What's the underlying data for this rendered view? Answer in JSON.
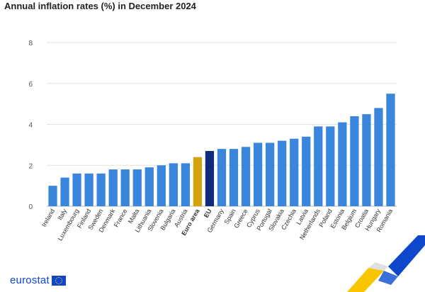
{
  "page_title": "Annual inflation rates (%) in December 2024",
  "brand": {
    "name": "eurostat",
    "logo_icon": "eu-flag-icon"
  },
  "colors": {
    "country": "#3b86dd",
    "euro_area": "#d4a20d",
    "eu": "#0e2a78",
    "grid": "#e4e4e4",
    "brand": "#0e47cb"
  },
  "chart_data": {
    "type": "bar",
    "title": "Annual inflation rates (%) in December 2024",
    "xlabel": "",
    "ylabel": "",
    "ylim": [
      0,
      8
    ],
    "yticks": [
      0,
      2,
      4,
      6,
      8
    ],
    "grid": true,
    "categories": [
      "Ireland",
      "Italy",
      "Luxembourg",
      "Finland",
      "Sweden",
      "Denmark",
      "France",
      "Malta",
      "Lithuania",
      "Slovenia",
      "Bulgaria",
      "Austria",
      "Euro area",
      "EU",
      "Germany",
      "Spain",
      "Greece",
      "Cyprus",
      "Portugal",
      "Slovakia",
      "Czechia",
      "Latvia",
      "Netherlands",
      "Poland",
      "Estonia",
      "Belgium",
      "Croatia",
      "Hungary",
      "Romania"
    ],
    "values": [
      1.0,
      1.4,
      1.6,
      1.6,
      1.6,
      1.8,
      1.8,
      1.8,
      1.9,
      2.0,
      2.1,
      2.1,
      2.4,
      2.7,
      2.8,
      2.8,
      2.9,
      3.1,
      3.1,
      3.2,
      3.3,
      3.4,
      3.9,
      3.9,
      4.1,
      4.4,
      4.5,
      4.8,
      5.5
    ],
    "highlight": {
      "Euro area": "euro_area",
      "EU": "eu"
    },
    "bold_labels": [
      "Euro area",
      "EU"
    ]
  }
}
